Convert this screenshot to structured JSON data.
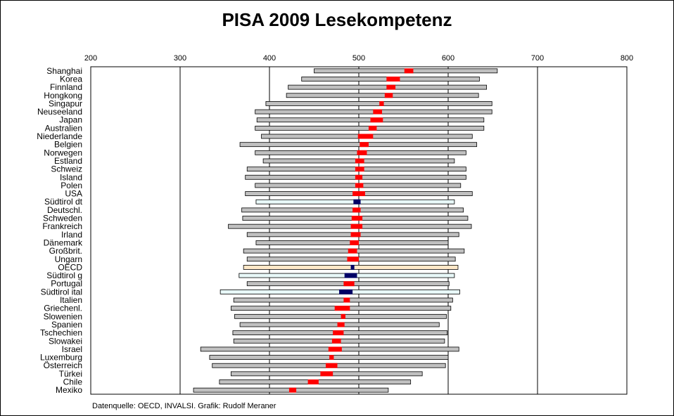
{
  "chart_data": {
    "type": "bar",
    "title": "PISA 2009 Lesekompetenz",
    "source": "Datenquelle: OECD, INVALSI. Grafik: Rudolf Meraner",
    "xlim": [
      200,
      800
    ],
    "xticks": [
      200,
      300,
      400,
      500,
      600,
      700,
      800
    ],
    "grid": true,
    "colors": {
      "range_bar": "#c0c0c0",
      "south_tyrol_bar": "#e8f8f8",
      "oecd_bar": "#ffe8c8",
      "mean_marker": "#ff0000",
      "highlight_marker": "#000066"
    },
    "countries": [
      {
        "name": "Shanghai",
        "low": 450,
        "high": 655,
        "mean_low": 551,
        "mean_high": 561,
        "group": "country"
      },
      {
        "name": "Korea",
        "low": 436,
        "high": 635,
        "mean_low": 531,
        "mean_high": 546,
        "group": "country"
      },
      {
        "name": "Finnland",
        "low": 421,
        "high": 643,
        "mean_low": 531,
        "mean_high": 541,
        "group": "country"
      },
      {
        "name": "Hongkong",
        "low": 419,
        "high": 634,
        "mean_low": 529,
        "mean_high": 538,
        "group": "country"
      },
      {
        "name": "Singapur",
        "low": 396,
        "high": 649,
        "mean_low": 523,
        "mean_high": 528,
        "group": "country"
      },
      {
        "name": "Neuseeland",
        "low": 384,
        "high": 649,
        "mean_low": 516,
        "mean_high": 526,
        "group": "country"
      },
      {
        "name": "Japan",
        "low": 386,
        "high": 640,
        "mean_low": 513,
        "mean_high": 527,
        "group": "country"
      },
      {
        "name": "Australien",
        "low": 384,
        "high": 640,
        "mean_low": 511,
        "mean_high": 520,
        "group": "country"
      },
      {
        "name": "Niederlande",
        "low": 391,
        "high": 627,
        "mean_low": 499,
        "mean_high": 516,
        "group": "country"
      },
      {
        "name": "Belgien",
        "low": 367,
        "high": 632,
        "mean_low": 501,
        "mean_high": 511,
        "group": "country"
      },
      {
        "name": "Norwegen",
        "low": 384,
        "high": 620,
        "mean_low": 498,
        "mean_high": 509,
        "group": "country"
      },
      {
        "name": "Estland",
        "low": 393,
        "high": 607,
        "mean_low": 496,
        "mean_high": 506,
        "group": "country"
      },
      {
        "name": "Schweiz",
        "low": 375,
        "high": 620,
        "mean_low": 496,
        "mean_high": 506,
        "group": "country"
      },
      {
        "name": "Island",
        "low": 373,
        "high": 620,
        "mean_low": 496,
        "mean_high": 504,
        "group": "country"
      },
      {
        "name": "Polen",
        "low": 384,
        "high": 614,
        "mean_low": 496,
        "mean_high": 505,
        "group": "country"
      },
      {
        "name": "USA",
        "low": 373,
        "high": 627,
        "mean_low": 493,
        "mean_high": 507,
        "group": "country"
      },
      {
        "name": "Südtirol dt",
        "low": 385,
        "high": 607,
        "mean_low": 494,
        "mean_high": 502,
        "group": "south_tyrol"
      },
      {
        "name": "Deutschl.",
        "low": 369,
        "high": 617,
        "mean_low": 493,
        "mean_high": 502,
        "group": "country"
      },
      {
        "name": "Schweden",
        "low": 370,
        "high": 622,
        "mean_low": 492,
        "mean_high": 504,
        "group": "country"
      },
      {
        "name": "Frankreich",
        "low": 354,
        "high": 626,
        "mean_low": 491,
        "mean_high": 504,
        "group": "country"
      },
      {
        "name": "Irland",
        "low": 375,
        "high": 612,
        "mean_low": 491,
        "mean_high": 502,
        "group": "country"
      },
      {
        "name": "Dänemark",
        "low": 385,
        "high": 600,
        "mean_low": 490,
        "mean_high": 500,
        "group": "country"
      },
      {
        "name": "Großbrit.",
        "low": 371,
        "high": 618,
        "mean_low": 488,
        "mean_high": 498,
        "group": "country"
      },
      {
        "name": "Ungarn",
        "low": 375,
        "high": 608,
        "mean_low": 487,
        "mean_high": 500,
        "group": "country"
      },
      {
        "name": "OECD",
        "low": 371,
        "high": 611,
        "mean_low": 491,
        "mean_high": 495,
        "group": "oecd"
      },
      {
        "name": "Südtirol g",
        "low": 366,
        "high": 607,
        "mean_low": 484,
        "mean_high": 498,
        "group": "south_tyrol"
      },
      {
        "name": "Portugal",
        "low": 375,
        "high": 601,
        "mean_low": 483,
        "mean_high": 495,
        "group": "country"
      },
      {
        "name": "Südtirol ital",
        "low": 345,
        "high": 613,
        "mean_low": 478,
        "mean_high": 493,
        "group": "south_tyrol"
      },
      {
        "name": "Italien",
        "low": 360,
        "high": 605,
        "mean_low": 483,
        "mean_high": 490,
        "group": "country"
      },
      {
        "name": "Griechenl.",
        "low": 357,
        "high": 603,
        "mean_low": 473,
        "mean_high": 490,
        "group": "country"
      },
      {
        "name": "Slowenien",
        "low": 361,
        "high": 598,
        "mean_low": 480,
        "mean_high": 485,
        "group": "country"
      },
      {
        "name": "Spanien",
        "low": 367,
        "high": 590,
        "mean_low": 476,
        "mean_high": 484,
        "group": "country"
      },
      {
        "name": "Tschechien",
        "low": 359,
        "high": 599,
        "mean_low": 471,
        "mean_high": 483,
        "group": "country"
      },
      {
        "name": "Slowakei",
        "low": 360,
        "high": 596,
        "mean_low": 470,
        "mean_high": 480,
        "group": "country"
      },
      {
        "name": "Israel",
        "low": 323,
        "high": 612,
        "mean_low": 466,
        "mean_high": 481,
        "group": "country"
      },
      {
        "name": "Luxemburg",
        "low": 333,
        "high": 600,
        "mean_low": 467,
        "mean_high": 472,
        "group": "country"
      },
      {
        "name": "Österreich",
        "low": 336,
        "high": 597,
        "mean_low": 463,
        "mean_high": 476,
        "group": "country"
      },
      {
        "name": "Türkei",
        "low": 357,
        "high": 571,
        "mean_low": 457,
        "mean_high": 471,
        "group": "country"
      },
      {
        "name": "Chile",
        "low": 344,
        "high": 558,
        "mean_low": 443,
        "mean_high": 455,
        "group": "country"
      },
      {
        "name": "Mexiko",
        "low": 315,
        "high": 533,
        "mean_low": 422,
        "mean_high": 430,
        "group": "country"
      }
    ]
  }
}
